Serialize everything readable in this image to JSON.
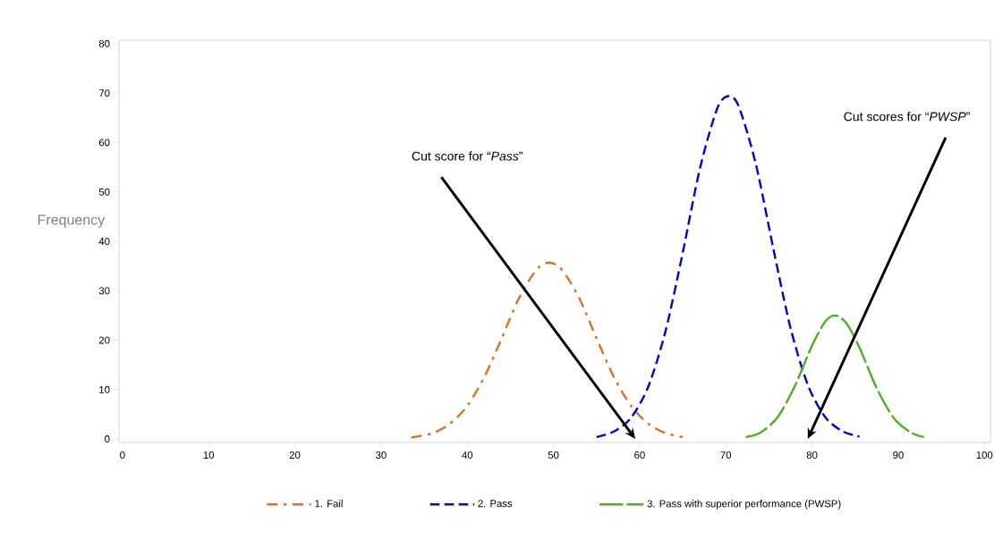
{
  "chart_data": {
    "type": "line",
    "ylabel": "Frequency",
    "xlim": [
      -0.4,
      100.7
    ],
    "ylim": [
      -0.7,
      80.7
    ],
    "xticks": [
      0,
      10,
      20,
      30,
      40,
      50,
      60,
      70,
      80,
      90,
      100
    ],
    "yticks": [
      0,
      10,
      20,
      30,
      40,
      50,
      60,
      70,
      80
    ],
    "grid": false,
    "legend": "bottom",
    "marker": "none",
    "series": [
      {
        "name": "1. Fail",
        "color": "#e07020",
        "line_style": "dashed",
        "x": [
          33.5,
          36,
          38,
          40,
          42,
          44,
          46,
          48,
          49.5,
          51,
          53,
          55,
          57,
          59,
          61,
          63,
          65
        ],
        "values": [
          0.3,
          1.2,
          3.1,
          6.7,
          12.6,
          20.4,
          28.5,
          34.2,
          35.7,
          34.2,
          28.5,
          20.4,
          12.6,
          6.7,
          3.1,
          1.2,
          0.4
        ]
      },
      {
        "name": "2. Pass",
        "color": "#0000e0",
        "line_style": "dashed",
        "x": [
          55,
          57,
          59,
          61,
          63,
          65,
          67,
          69,
          70.3,
          71.5,
          73.5,
          75.5,
          77.5,
          79.5,
          81.5,
          83.5,
          85.5
        ],
        "values": [
          0.4,
          1.5,
          4.3,
          10.6,
          21.8,
          37.7,
          54.8,
          66.9,
          69.4,
          67.3,
          55.5,
          38.6,
          22.5,
          11.0,
          4.5,
          1.6,
          0.5
        ]
      },
      {
        "name": "3. Pass with superior performance (PWSP)",
        "color": "#50b020",
        "line_style": "dashed",
        "x": [
          72.3,
          74,
          76,
          78,
          80,
          81.5,
          82.7,
          84,
          85.5,
          87.5,
          89.5,
          91.5,
          93
        ],
        "values": [
          0.4,
          1.3,
          4.4,
          10.7,
          18.9,
          23.7,
          25.0,
          23.4,
          18.5,
          10.3,
          4.2,
          1.3,
          0.4
        ]
      }
    ],
    "annotations": [
      "Cut score for “*Pass*”",
      "Cut scores for “*PWSP*”"
    ]
  }
}
